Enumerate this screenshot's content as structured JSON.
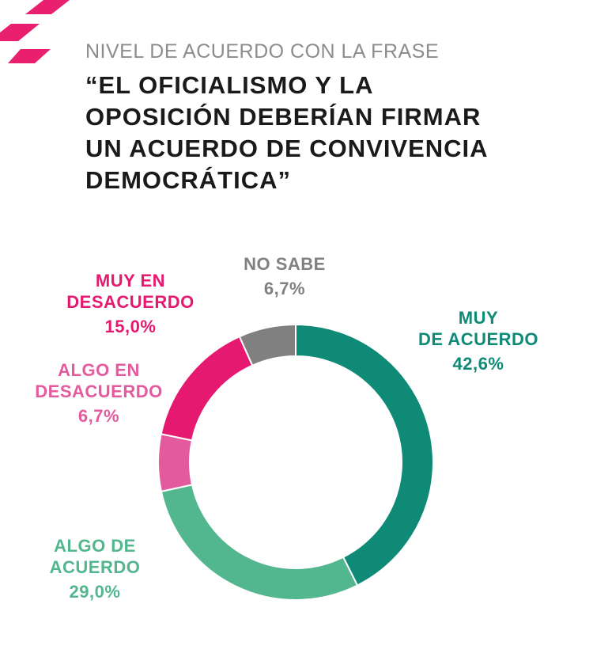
{
  "header": {
    "subtitle": "NIVEL DE ACUERDO CON LA FRASE",
    "title_lines": [
      "“EL OFICIALISMO Y LA",
      "OPOSICIÓN DEBERÍAN FIRMAR",
      "UN ACUERDO DE CONVIVENCIA",
      "DEMOCRÁTICA”"
    ]
  },
  "colors": {
    "muy_de_acuerdo": "#0e8a76",
    "algo_de_acuerdo": "#52b68e",
    "algo_en_desacuerdo": "#e45a9e",
    "muy_en_desacuerdo": "#e5196f",
    "no_sabe": "#808080",
    "accent": "#e8206f"
  },
  "chart_data": {
    "type": "pie",
    "style": "donut",
    "segments": [
      {
        "key": "muy_de_acuerdo",
        "label_lines": [
          "MUY",
          "DE ACUERDO"
        ],
        "value_label": "42,6%",
        "value": 42.6
      },
      {
        "key": "algo_de_acuerdo",
        "label_lines": [
          "ALGO DE",
          "ACUERDO"
        ],
        "value_label": "29,0%",
        "value": 29.0
      },
      {
        "key": "algo_en_desacuerdo",
        "label_lines": [
          "ALGO EN",
          "DESACUERDO"
        ],
        "value_label": "6,7%",
        "value": 6.7
      },
      {
        "key": "muy_en_desacuerdo",
        "label_lines": [
          "MUY EN",
          "DESACUERDO"
        ],
        "value_label": "15,0%",
        "value": 15.0
      },
      {
        "key": "no_sabe",
        "label_lines": [
          "NO SABE"
        ],
        "value_label": "6,7%",
        "value": 6.7
      }
    ]
  }
}
